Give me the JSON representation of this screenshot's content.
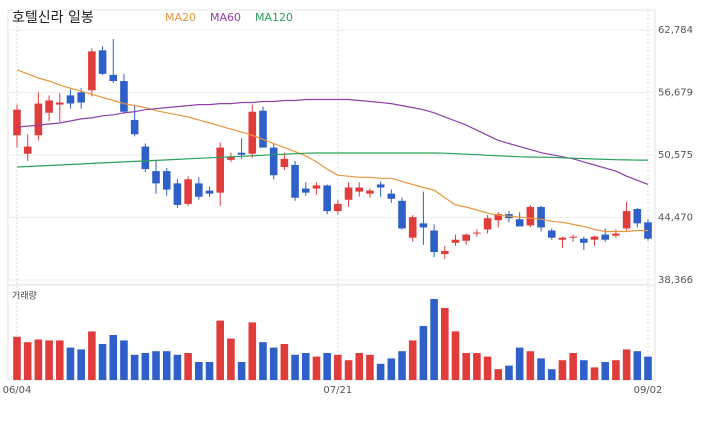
{
  "chart_data": {
    "type": "candlestick",
    "title": "호텔신라 일봉",
    "volume_label": "거래량",
    "up_color": "#e03c3c",
    "down_color": "#2f5fc8",
    "categories": [
      "06/04",
      null,
      null,
      null,
      null,
      null,
      null,
      null,
      null,
      null,
      null,
      null,
      null,
      null,
      null,
      null,
      null,
      null,
      null,
      null,
      null,
      null,
      null,
      null,
      null,
      null,
      null,
      null,
      null,
      null,
      "07/21",
      null,
      null,
      null,
      null,
      null,
      null,
      null,
      null,
      null,
      null,
      null,
      null,
      null,
      null,
      null,
      null,
      null,
      null,
      null,
      null,
      null,
      null,
      null,
      null,
      null,
      null,
      null,
      null,
      "09/02"
    ],
    "open": [
      52500,
      50700,
      52500,
      54700,
      55500,
      56400,
      56700,
      56900,
      60800,
      58400,
      57800,
      54000,
      51400,
      49000,
      49000,
      47800,
      45800,
      47800,
      47100,
      46900,
      50100,
      50800,
      50700,
      54900,
      51300,
      49400,
      49600,
      47300,
      47300,
      47600,
      45100,
      46200,
      47000,
      46800,
      47700,
      46800,
      46100,
      42500,
      43900,
      43200,
      40900,
      42000,
      42200,
      42900,
      43300,
      44200,
      44800,
      44300,
      43700,
      45500,
      43200,
      42300,
      42500,
      42400,
      42300,
      42800,
      42700,
      43400,
      45300,
      44000
    ],
    "high": [
      55500,
      52600,
      56700,
      56400,
      56600,
      57000,
      57100,
      61000,
      61200,
      61900,
      58500,
      55500,
      51700,
      50100,
      49300,
      48200,
      48500,
      48400,
      47500,
      51800,
      50800,
      52200,
      55500,
      55300,
      51700,
      50800,
      50000,
      47900,
      47900,
      47700,
      46200,
      47900,
      47900,
      47300,
      48000,
      47200,
      46400,
      44700,
      47000,
      43800,
      41700,
      42800,
      42900,
      43300,
      44700,
      45000,
      45100,
      45000,
      45700,
      45600,
      43400,
      42600,
      42800,
      42600,
      42700,
      43400,
      43300,
      46000,
      45400,
      44300
    ],
    "low": [
      51300,
      50000,
      52000,
      53900,
      53800,
      55100,
      55100,
      56300,
      58400,
      57600,
      54600,
      52400,
      48900,
      46800,
      46600,
      45400,
      45600,
      46200,
      46500,
      45600,
      49900,
      50200,
      50300,
      51300,
      48200,
      49100,
      46100,
      46600,
      46700,
      44800,
      44800,
      45500,
      46500,
      46400,
      46500,
      45900,
      43300,
      42100,
      41800,
      40600,
      40400,
      41700,
      41800,
      42600,
      42900,
      43500,
      44000,
      43600,
      43500,
      43100,
      42300,
      41500,
      42100,
      41300,
      41700,
      42100,
      42500,
      43200,
      43500,
      42200
    ],
    "close": [
      55000,
      51400,
      55600,
      55900,
      55700,
      55600,
      55700,
      60700,
      58500,
      57800,
      54800,
      52600,
      49200,
      47800,
      47200,
      45700,
      48200,
      46500,
      46800,
      51300,
      50400,
      50600,
      54800,
      51300,
      48600,
      50200,
      46400,
      46900,
      47600,
      45100,
      45800,
      47400,
      47400,
      47100,
      47400,
      46300,
      43400,
      44500,
      43500,
      41100,
      41200,
      42300,
      42800,
      43000,
      44400,
      44800,
      44400,
      43600,
      45500,
      43500,
      42500,
      42500,
      42600,
      42000,
      42600,
      42300,
      42900,
      45100,
      43900,
      42400
    ],
    "volume": [
      48,
      42,
      45,
      44,
      44,
      36,
      34,
      54,
      40,
      50,
      44,
      28,
      30,
      32,
      32,
      28,
      30,
      20,
      20,
      66,
      46,
      20,
      64,
      42,
      36,
      40,
      28,
      30,
      26,
      30,
      28,
      22,
      30,
      28,
      18,
      24,
      32,
      44,
      60,
      90,
      80,
      54,
      30,
      30,
      26,
      12,
      16,
      36,
      32,
      24,
      12,
      22,
      30,
      22,
      14,
      20,
      22,
      34,
      32,
      26
    ],
    "volume_lim": [
      0,
      100
    ],
    "ma": [
      {
        "name": "MA20",
        "color": "#e8963c",
        "values": [
          58900,
          58500,
          58100,
          57800,
          57400,
          57100,
          56800,
          56500,
          56200,
          55900,
          55600,
          55400,
          55200,
          54900,
          54700,
          54500,
          54300,
          54000,
          53700,
          53400,
          53100,
          52800,
          52500,
          52100,
          51700,
          51300,
          50900,
          50500,
          49900,
          49200,
          48600,
          48500,
          48400,
          48400,
          48300,
          48300,
          48000,
          47700,
          47400,
          47150,
          46400,
          45700,
          45500,
          45200,
          44900,
          44700,
          44600,
          44500,
          44400,
          44300,
          44100,
          44000,
          43800,
          43600,
          43300,
          43100,
          43100,
          43100,
          43200,
          43200
        ]
      },
      {
        "name": "MA60",
        "color": "#8e3fa8",
        "values": [
          53300,
          53400,
          53500,
          53600,
          53700,
          53900,
          54100,
          54200,
          54400,
          54500,
          54700,
          54800,
          55000,
          55100,
          55200,
          55300,
          55400,
          55500,
          55500,
          55600,
          55600,
          55700,
          55700,
          55800,
          55800,
          55900,
          55900,
          56000,
          56000,
          56000,
          56000,
          56000,
          55900,
          55800,
          55700,
          55600,
          55400,
          55200,
          55000,
          54700,
          54300,
          53900,
          53500,
          53000,
          52500,
          52000,
          51700,
          51400,
          51100,
          50800,
          50600,
          50400,
          50200,
          49900,
          49600,
          49300,
          49000,
          48500,
          48100,
          47700
        ]
      },
      {
        "name": "MA120",
        "color": "#2aa05a",
        "values": [
          49400,
          49450,
          49500,
          49550,
          49600,
          49650,
          49700,
          49750,
          49800,
          49850,
          49900,
          49950,
          50000,
          50050,
          50100,
          50150,
          50200,
          50250,
          50300,
          50350,
          50400,
          50450,
          50500,
          50550,
          50600,
          50650,
          50700,
          50750,
          50770,
          50770,
          50770,
          50770,
          50770,
          50770,
          50770,
          50770,
          50770,
          50770,
          50770,
          50770,
          50750,
          50700,
          50650,
          50600,
          50550,
          50500,
          50450,
          50400,
          50380,
          50360,
          50340,
          50300,
          50260,
          50220,
          50180,
          50150,
          50120,
          50100,
          50080,
          50080
        ]
      }
    ],
    "ylim": [
      37878,
      64737
    ],
    "yticks": [
      {
        "value": 38366,
        "label": "38,366"
      },
      {
        "value": 44470,
        "label": "44,470"
      },
      {
        "value": 50575,
        "label": "50,575"
      },
      {
        "value": 56679,
        "label": "56,679"
      },
      {
        "value": 62784,
        "label": "62,784"
      }
    ],
    "grid": true
  }
}
